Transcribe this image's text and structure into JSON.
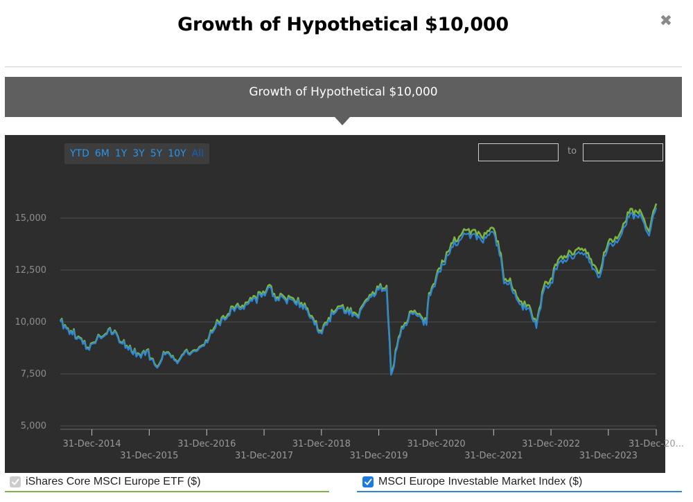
{
  "modal": {
    "title": "Growth of Hypothetical $10,000",
    "close_glyph": "✖"
  },
  "banner": {
    "title": "Growth of Hypothetical $10,000"
  },
  "range_buttons": [
    "YTD",
    "6M",
    "1Y",
    "3Y",
    "5Y",
    "10Y",
    "All"
  ],
  "active_range": "All",
  "date_range": {
    "from": "",
    "to": "",
    "separator": "to"
  },
  "legend": [
    {
      "label": "iShares Core MSCI Europe ETF ($)",
      "checked": true,
      "color": "#7cb342",
      "checkbox_color": "#cccccc"
    },
    {
      "label": "MSCI Europe Investable Market Index ($)",
      "checked": true,
      "color": "#2d86d6",
      "checkbox_color": "#1f7ae0"
    }
  ],
  "chart_data": {
    "type": "line",
    "title": "",
    "xlabel": "",
    "ylabel": "",
    "ylim": [
      5000,
      17000
    ],
    "xlim": [
      "2014-06-13",
      "2024-10-31"
    ],
    "yticks": [
      5000,
      7500,
      10000,
      12500,
      15000
    ],
    "ytick_labels": [
      "5,000",
      "7,500",
      "10,000",
      "12,500",
      "15,000"
    ],
    "xticks": [
      {
        "date": "2014-12-31",
        "label": "31-Dec-2014",
        "row": 0
      },
      {
        "date": "2015-12-31",
        "label": "31-Dec-2015",
        "row": 1
      },
      {
        "date": "2016-12-31",
        "label": "31-Dec-2016",
        "row": 0
      },
      {
        "date": "2017-12-31",
        "label": "31-Dec-2017",
        "row": 1
      },
      {
        "date": "2018-12-31",
        "label": "31-Dec-2018",
        "row": 0
      },
      {
        "date": "2019-12-31",
        "label": "31-Dec-2019",
        "row": 1
      },
      {
        "date": "2020-12-31",
        "label": "31-Dec-2020",
        "row": 0
      },
      {
        "date": "2021-12-31",
        "label": "31-Dec-2021",
        "row": 1
      },
      {
        "date": "2022-12-31",
        "label": "31-Dec-2022",
        "row": 0
      },
      {
        "date": "2023-12-31",
        "label": "31-Dec-2023",
        "row": 1
      },
      {
        "date": "2024-10-31",
        "label": "31-Dec-20...",
        "row": 0
      }
    ],
    "grid": true,
    "legend_position": "bottom",
    "x": [
      "2014-06-13",
      "2014-08-01",
      "2014-10-15",
      "2014-12-15",
      "2015-02-01",
      "2015-04-15",
      "2015-06-15",
      "2015-08-20",
      "2015-10-30",
      "2015-12-15",
      "2016-02-11",
      "2016-04-20",
      "2016-06-27",
      "2016-08-15",
      "2016-10-15",
      "2016-12-15",
      "2017-02-15",
      "2017-04-15",
      "2017-06-15",
      "2017-08-15",
      "2017-10-15",
      "2017-12-15",
      "2018-01-26",
      "2018-03-25",
      "2018-05-15",
      "2018-07-15",
      "2018-09-15",
      "2018-10-30",
      "2018-12-24",
      "2019-02-15",
      "2019-04-15",
      "2019-06-15",
      "2019-08-15",
      "2019-10-15",
      "2019-12-31",
      "2020-02-19",
      "2020-03-18",
      "2020-05-15",
      "2020-07-15",
      "2020-09-15",
      "2020-10-30",
      "2020-11-15",
      "2020-12-31",
      "2021-02-15",
      "2021-04-15",
      "2021-06-15",
      "2021-08-15",
      "2021-10-15",
      "2021-12-31",
      "2022-02-15",
      "2022-03-07",
      "2022-04-15",
      "2022-06-15",
      "2022-08-15",
      "2022-09-29",
      "2022-11-15",
      "2022-12-31",
      "2023-02-15",
      "2023-04-15",
      "2023-06-15",
      "2023-08-15",
      "2023-10-27",
      "2023-12-31",
      "2024-02-15",
      "2024-04-15",
      "2024-05-20",
      "2024-06-30",
      "2024-08-05",
      "2024-09-15",
      "2024-10-31"
    ],
    "series": [
      {
        "name": "iShares Core MSCI Europe ETF ($)",
        "color": "#7cb342",
        "values": [
          10050,
          9700,
          9250,
          8700,
          9200,
          9650,
          9300,
          8700,
          8450,
          8650,
          7900,
          8550,
          8050,
          8600,
          8650,
          8900,
          9700,
          10300,
          10750,
          10800,
          11100,
          11300,
          11750,
          11200,
          11150,
          11000,
          10900,
          10300,
          9600,
          10200,
          10750,
          10700,
          10350,
          11100,
          11650,
          11750,
          7550,
          9400,
          10500,
          10400,
          9950,
          11400,
          12200,
          12900,
          13800,
          14300,
          14400,
          14100,
          14500,
          13300,
          12000,
          12100,
          11000,
          10800,
          9800,
          11700,
          12100,
          13000,
          13200,
          13500,
          13300,
          12350,
          13850,
          14100,
          14800,
          15450,
          15300,
          15100,
          14350,
          15700
        ]
      },
      {
        "name": "MSCI Europe Investable Market Index ($)",
        "color": "#2d86d6",
        "values": [
          10000,
          9650,
          9200,
          8650,
          9150,
          9600,
          9250,
          8650,
          8400,
          8600,
          7850,
          8500,
          8000,
          8550,
          8600,
          8850,
          9600,
          10200,
          10650,
          10700,
          11000,
          11200,
          11650,
          11100,
          11050,
          10900,
          10800,
          10200,
          9500,
          10100,
          10650,
          10600,
          10250,
          11000,
          11550,
          11650,
          7450,
          9300,
          10400,
          10300,
          9850,
          11300,
          12050,
          12750,
          13600,
          14100,
          14200,
          13900,
          14300,
          13100,
          11850,
          11950,
          10850,
          10650,
          9700,
          11500,
          11900,
          12800,
          13000,
          13300,
          13100,
          12150,
          13650,
          13900,
          14600,
          15250,
          15100,
          14900,
          14150,
          15500
        ]
      }
    ]
  }
}
